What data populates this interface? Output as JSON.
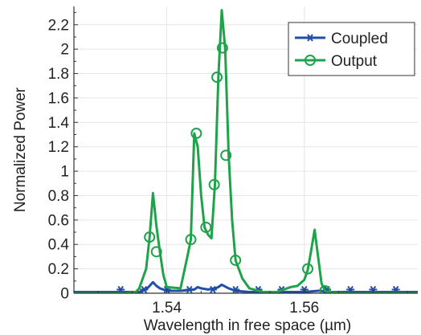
{
  "chart_data": {
    "type": "line",
    "xlabel": "Wavelength in free space (µm)",
    "ylabel": "Normalized Power",
    "xlim": [
      1.5265,
      1.5765
    ],
    "ylim": [
      0,
      2.35
    ],
    "x_ticks": [
      1.54,
      1.56
    ],
    "x_tick_labels": [
      "1.54",
      "1.56"
    ],
    "y_ticks": [
      0,
      0.2,
      0.4,
      0.6,
      0.8,
      1,
      1.2,
      1.4,
      1.6,
      1.8,
      2,
      2.2
    ],
    "y_tick_labels": [
      "0",
      "0.2",
      "0.4",
      "0.6",
      "0.8",
      "1",
      "1.2",
      "1.4",
      "1.6",
      "1.8",
      "2",
      "2.2"
    ],
    "grid": true,
    "legend_position": "top-right",
    "series": [
      {
        "name": "Coupled",
        "color": "#1f4fa8",
        "marker": "asterisk",
        "x": [
          1.5265,
          1.53,
          1.534,
          1.536,
          1.537,
          1.5375,
          1.538,
          1.5385,
          1.539,
          1.54,
          1.542,
          1.544,
          1.5445,
          1.545,
          1.546,
          1.547,
          1.5475,
          1.548,
          1.549,
          1.55,
          1.552,
          1.554,
          1.556,
          1.558,
          1.56,
          1.562,
          1.5625,
          1.563,
          1.566,
          1.57,
          1.5765
        ],
        "y": [
          0.01,
          0.01,
          0.01,
          0.01,
          0.03,
          0.06,
          0.09,
          0.06,
          0.04,
          0.02,
          0.02,
          0.03,
          0.05,
          0.04,
          0.03,
          0.04,
          0.05,
          0.07,
          0.04,
          0.02,
          0.01,
          0.01,
          0.01,
          0.01,
          0.01,
          0.02,
          0.02,
          0.01,
          0.01,
          0.01,
          0.01
        ],
        "marker_x": [
          1.5333,
          1.5367,
          1.54,
          1.5433,
          1.5467,
          1.55,
          1.5533,
          1.5567,
          1.56,
          1.5633,
          1.5667,
          1.57,
          1.5733
        ],
        "marker_y": [
          0.03,
          0.03,
          0.03,
          0.03,
          0.03,
          0.03,
          0.03,
          0.03,
          0.03,
          0.03,
          0.03,
          0.03,
          0.03
        ]
      },
      {
        "name": "Output",
        "color": "#1ea34a",
        "marker": "circle",
        "x": [
          1.5265,
          1.53,
          1.534,
          1.5355,
          1.536,
          1.537,
          1.5375,
          1.538,
          1.5385,
          1.539,
          1.5395,
          1.54,
          1.542,
          1.543,
          1.5435,
          1.544,
          1.5445,
          1.545,
          1.5455,
          1.546,
          1.5465,
          1.547,
          1.5475,
          1.548,
          1.5485,
          1.549,
          1.5495,
          1.55,
          1.551,
          1.552,
          1.554,
          1.556,
          1.558,
          1.559,
          1.56,
          1.5605,
          1.561,
          1.5615,
          1.562,
          1.5625,
          1.563,
          1.5635,
          1.566,
          1.57,
          1.5765
        ],
        "y": [
          0.0,
          0.0,
          0.0,
          0.01,
          0.04,
          0.2,
          0.46,
          0.82,
          0.55,
          0.34,
          0.15,
          0.05,
          0.04,
          0.3,
          0.44,
          1.31,
          1.2,
          0.8,
          0.54,
          0.48,
          0.45,
          0.89,
          1.77,
          2.32,
          2.0,
          1.13,
          0.6,
          0.27,
          0.12,
          0.04,
          0.01,
          0.01,
          0.05,
          0.06,
          0.11,
          0.19,
          0.35,
          0.52,
          0.3,
          0.08,
          0.02,
          0.01,
          0.0,
          0.0,
          0.0
        ],
        "marker_x": [
          1.5375,
          1.5385,
          1.5435,
          1.5443,
          1.5457,
          1.5469,
          1.5473,
          1.5481,
          1.5486,
          1.55,
          1.5605,
          1.563
        ],
        "marker_y": [
          0.46,
          0.34,
          0.44,
          1.31,
          0.54,
          0.89,
          1.77,
          2.01,
          1.13,
          0.27,
          0.2,
          0.02
        ]
      }
    ]
  }
}
